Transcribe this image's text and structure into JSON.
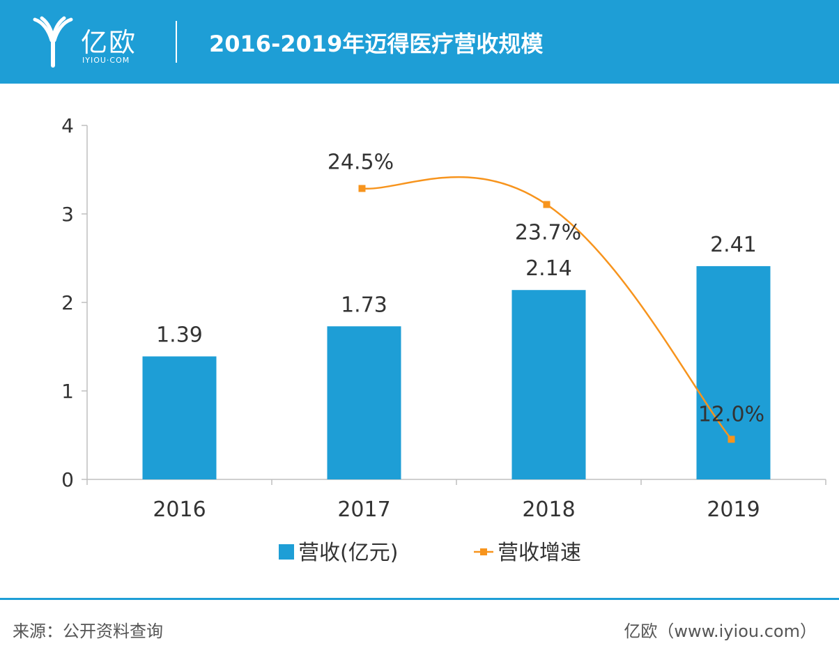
{
  "header": {
    "logo_text": "亿欧",
    "logo_sub": "IYIOU·COM",
    "title": "2016-2019年迈得医疗营收规模"
  },
  "colors": {
    "bar": "#1e9ed6",
    "line": "#f7941d",
    "header": "#1e9ed6",
    "axis": "#bfbfbf",
    "text": "#333333"
  },
  "chart_data": {
    "type": "bar",
    "categories": [
      "2016",
      "2017",
      "2018",
      "2019"
    ],
    "ylim": [
      0,
      4
    ],
    "yticks": [
      "0",
      "1",
      "2",
      "3",
      "4"
    ],
    "grid": false,
    "legend": "bottom",
    "series": [
      {
        "name": "营收(亿元)",
        "type": "bar",
        "values": [
          1.39,
          1.73,
          2.14,
          2.41
        ],
        "labels": [
          "1.39",
          "1.73",
          "2.14",
          "2.41"
        ]
      },
      {
        "name": "营收增速",
        "type": "line",
        "values": [
          null,
          24.5,
          23.7,
          12.0
        ],
        "labels": [
          "",
          "24.5%",
          "23.7%",
          "12.0%"
        ],
        "unit": "%"
      }
    ]
  },
  "footer": {
    "source": "来源：公开资料查询",
    "credit": "亿欧（www.iyiou.com）"
  }
}
